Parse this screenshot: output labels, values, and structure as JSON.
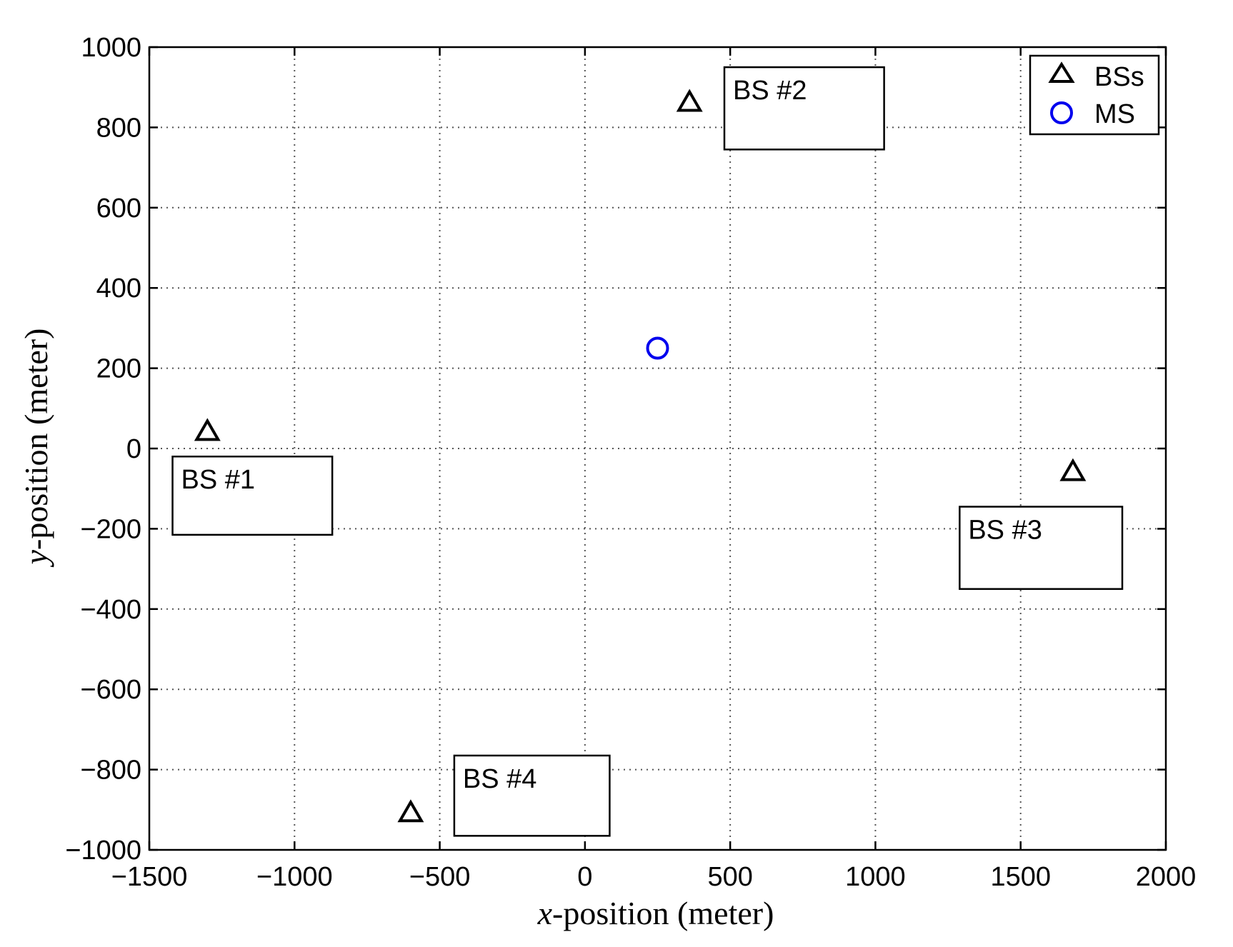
{
  "chart_data": {
    "type": "scatter",
    "xlabel": {
      "math": "x",
      "text": "-position (meter)"
    },
    "ylabel": {
      "math": "y",
      "text": "-position (meter)"
    },
    "xlim": [
      -1500,
      2000
    ],
    "ylim": [
      -1000,
      1000
    ],
    "xticks": [
      -1500,
      -1000,
      -500,
      0,
      500,
      1000,
      1500,
      2000
    ],
    "yticks": [
      -1000,
      -800,
      -600,
      -400,
      -200,
      0,
      200,
      400,
      600,
      800,
      1000
    ],
    "grid": true,
    "legend": {
      "placement": "top-right"
    },
    "series": [
      {
        "name": "BSs",
        "marker": "triangle",
        "color": "#000000",
        "points": [
          {
            "x": -1300,
            "y": 40
          },
          {
            "x": 360,
            "y": 860
          },
          {
            "x": 1680,
            "y": -60
          },
          {
            "x": -600,
            "y": -910
          }
        ]
      },
      {
        "name": "MS",
        "marker": "circle",
        "color": "#0000ee",
        "points": [
          {
            "x": 250,
            "y": 250
          }
        ]
      }
    ],
    "annotations": [
      {
        "text": "BS #1",
        "box": {
          "x0": -1420,
          "x1": -870,
          "y0": -215,
          "y1": -20
        }
      },
      {
        "text": "BS #2",
        "box": {
          "x0": 480,
          "x1": 1030,
          "y0": 745,
          "y1": 950
        }
      },
      {
        "text": "BS #3",
        "box": {
          "x0": 1290,
          "x1": 1850,
          "y0": -350,
          "y1": -145
        }
      },
      {
        "text": "BS #4",
        "box": {
          "x0": -450,
          "x1": 85,
          "y0": -965,
          "y1": -765
        }
      }
    ]
  }
}
